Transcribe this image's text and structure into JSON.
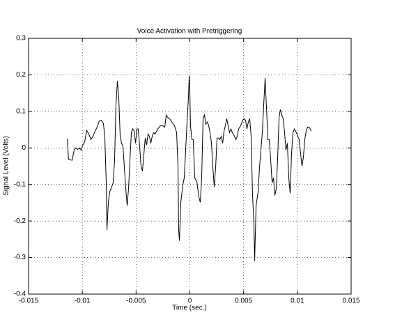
{
  "chart_data": {
    "type": "line",
    "title": "Voice Activation with Pretriggering",
    "xlabel": "Time (sec.)",
    "ylabel": "Signal Level (Volts)",
    "xlim": [
      -0.015,
      0.015
    ],
    "xticks": [
      -0.015,
      -0.01,
      -0.005,
      0,
      0.005,
      0.01,
      0.015
    ],
    "ylim": [
      -0.4,
      0.3
    ],
    "yticks": [
      -0.4,
      -0.3,
      -0.2,
      -0.1,
      0,
      0.1,
      0.2,
      0.3
    ],
    "grid": true,
    "x": [
      -0.0114,
      -0.01128,
      -0.01115,
      -0.01095,
      -0.01076,
      -0.01063,
      -0.01043,
      -0.01024,
      -0.01011,
      -0.00998,
      -0.00978,
      -0.00959,
      -0.0094,
      -0.0092,
      -0.00901,
      -0.00881,
      -0.00862,
      -0.00842,
      -0.00823,
      -0.00804,
      -0.00791,
      -0.00778,
      -0.00771,
      -0.00758,
      -0.00745,
      -0.00732,
      -0.00713,
      -0.007,
      -0.00687,
      -0.00674,
      -0.00661,
      -0.00648,
      -0.00635,
      -0.00622,
      -0.00609,
      -0.00596,
      -0.00583,
      -0.0057,
      -0.00557,
      -0.00544,
      -0.00531,
      -0.00518,
      -0.00505,
      -0.00492,
      -0.0048,
      -0.00467,
      -0.00454,
      -0.00441,
      -0.00428,
      -0.00415,
      -0.00402,
      -0.00389,
      -0.00376,
      -0.00363,
      -0.0035,
      -0.00337,
      -0.00324,
      -0.00298,
      -0.00272,
      -0.00253,
      -0.00233,
      -0.0022,
      -0.00207,
      -0.00188,
      -0.00168,
      -0.00143,
      -0.00123,
      -0.0011,
      -0.00104,
      -0.00097,
      -0.00084,
      -0.00065,
      -0.00052,
      -0.00039,
      -0.00026,
      -0.00013,
      -6e-05,
      0,
      6e-05,
      0.00019,
      0.00032,
      0.00045,
      0.00065,
      0.00084,
      0.00097,
      0.0011,
      0.00123,
      0.00136,
      0.00149,
      0.00162,
      0.00175,
      0.00188,
      0.00201,
      0.00214,
      0.00227,
      0.0024,
      0.00253,
      0.00266,
      0.00279,
      0.00292,
      0.00305,
      0.00318,
      0.0033,
      0.00343,
      0.00356,
      0.00369,
      0.00382,
      0.00395,
      0.00415,
      0.00428,
      0.00441,
      0.00454,
      0.00473,
      0.00492,
      0.00505,
      0.00518,
      0.00531,
      0.00544,
      0.00557,
      0.0057,
      0.00583,
      0.00596,
      0.00603,
      0.00616,
      0.00635,
      0.00648,
      0.00661,
      0.00674,
      0.00687,
      0.007,
      0.00713,
      0.00726,
      0.00739,
      0.00752,
      0.00765,
      0.00778,
      0.00791,
      0.00804,
      0.00817,
      0.0083,
      0.00842,
      0.00855,
      0.00868,
      0.00881,
      0.00894,
      0.00907,
      0.0092,
      0.00933,
      0.00946,
      0.00959,
      0.00972,
      0.00991,
      0.01004,
      0.01017,
      0.0103,
      0.01043,
      0.01056,
      0.01069,
      0.01082,
      0.01095,
      0.01115,
      0.01128
    ],
    "series": [
      {
        "color": "#000000",
        "values": [
          0.025,
          -0.031,
          -0.032,
          -0.034,
          -0.006,
          0,
          -0.004,
          0,
          -0.006,
          0.006,
          0.017,
          0.048,
          0.038,
          0.023,
          0.032,
          0.046,
          0.057,
          0.074,
          0.076,
          0.067,
          0.032,
          -0.092,
          -0.225,
          -0.149,
          -0.12,
          -0.111,
          -0.095,
          -0.034,
          0.118,
          0.183,
          0.137,
          0.032,
          0.013,
          0.004,
          -0.053,
          -0.111,
          -0.158,
          -0.111,
          -0.034,
          0.042,
          0.052,
          0.046,
          0.013,
          0.052,
          0.052,
          0.004,
          -0.05,
          -0.063,
          -0.019,
          0.027,
          0.008,
          0.038,
          0.032,
          0.013,
          0.032,
          0.042,
          0.038,
          0.052,
          0.061,
          0.061,
          0.057,
          0.09,
          0.084,
          0.08,
          0.071,
          0.061,
          0.042,
          -0.053,
          -0.225,
          -0.254,
          -0.149,
          -0.101,
          -0.082,
          -0.006,
          0.071,
          0.137,
          0.198,
          0.156,
          0.061,
          0.023,
          0.023,
          -0.082,
          -0.092,
          -0.134,
          -0.149,
          -0.082,
          0.08,
          0.09,
          0.065,
          0.071,
          0.061,
          0.042,
          0.013,
          -0.053,
          -0.107,
          -0.053,
          0.027,
          0.027,
          0.023,
          0.032,
          0.013,
          0.046,
          0.061,
          0.08,
          0.061,
          0.042,
          0.052,
          0.042,
          0.032,
          0.023,
          0.032,
          0.052,
          0.061,
          0.076,
          0.08,
          0.076,
          0.052,
          0.071,
          0.08,
          0.032,
          -0.13,
          -0.206,
          -0.309,
          -0.158,
          -0.12,
          -0.053,
          -0.006,
          0.042,
          0.118,
          0.191,
          0.109,
          0.023,
          0.023,
          -0.034,
          -0.095,
          -0.082,
          -0.13,
          -0.111,
          -0.025,
          0.084,
          0.105,
          0.09,
          0.08,
          0.042,
          -0.006,
          0.013,
          -0.082,
          -0.124,
          -0.015,
          0.042,
          0.052,
          0.042,
          0.032,
          0.023,
          -0.015,
          -0.05,
          -0.025,
          0.023,
          0.046,
          0.057,
          0.055,
          0.046
        ]
      }
    ]
  }
}
